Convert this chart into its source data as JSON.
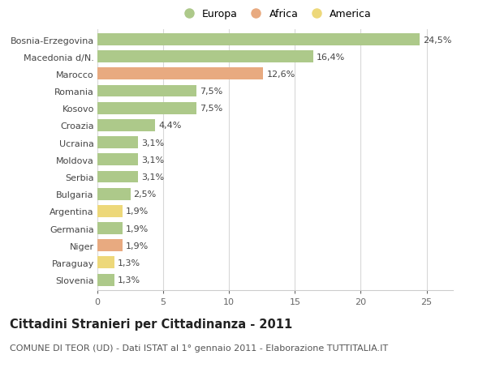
{
  "categories": [
    "Bosnia-Erzegovina",
    "Macedonia d/N.",
    "Marocco",
    "Romania",
    "Kosovo",
    "Croazia",
    "Ucraina",
    "Moldova",
    "Serbia",
    "Bulgaria",
    "Argentina",
    "Germania",
    "Niger",
    "Paraguay",
    "Slovenia"
  ],
  "values": [
    24.5,
    16.4,
    12.6,
    7.5,
    7.5,
    4.4,
    3.1,
    3.1,
    3.1,
    2.5,
    1.9,
    1.9,
    1.9,
    1.3,
    1.3
  ],
  "labels": [
    "24,5%",
    "16,4%",
    "12,6%",
    "7,5%",
    "7,5%",
    "4,4%",
    "3,1%",
    "3,1%",
    "3,1%",
    "2,5%",
    "1,9%",
    "1,9%",
    "1,9%",
    "1,3%",
    "1,3%"
  ],
  "continents": [
    "Europa",
    "Europa",
    "Africa",
    "Europa",
    "Europa",
    "Europa",
    "Europa",
    "Europa",
    "Europa",
    "Europa",
    "America",
    "Europa",
    "Africa",
    "America",
    "Europa"
  ],
  "colors": {
    "Europa": "#adc98a",
    "Africa": "#e8aa80",
    "America": "#edd87a"
  },
  "legend_order": [
    "Europa",
    "Africa",
    "America"
  ],
  "legend_colors": [
    "#adc98a",
    "#e8aa80",
    "#edd87a"
  ],
  "xlim": [
    0,
    27
  ],
  "xticks": [
    0,
    5,
    10,
    15,
    20,
    25
  ],
  "title": "Cittadini Stranieri per Cittadinanza - 2011",
  "subtitle": "COMUNE DI TEOR (UD) - Dati ISTAT al 1° gennaio 2011 - Elaborazione TUTTITALIA.IT",
  "background_color": "#ffffff",
  "grid_color": "#d8d8d8",
  "bar_height": 0.7,
  "label_fontsize": 8,
  "tick_fontsize": 8,
  "title_fontsize": 10.5,
  "subtitle_fontsize": 8
}
